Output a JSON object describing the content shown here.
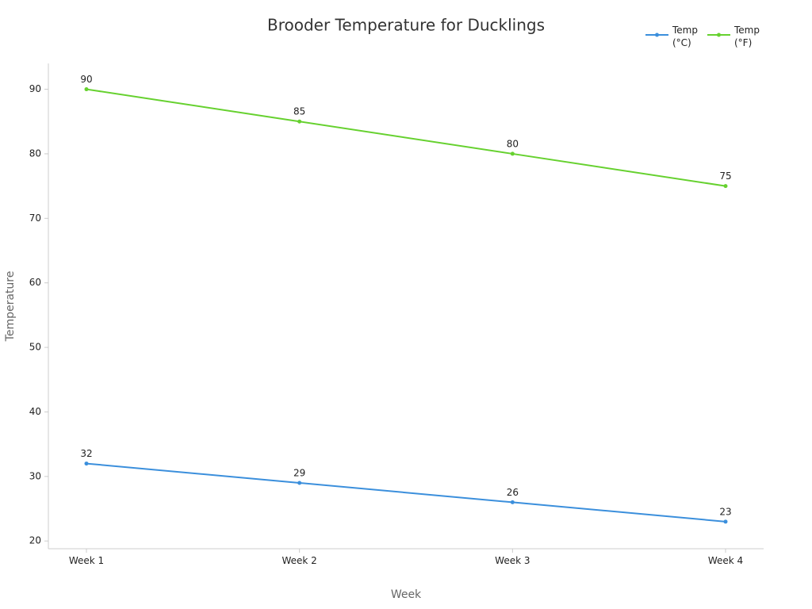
{
  "chart_data": {
    "type": "line",
    "title": "Brooder Temperature for Ducklings",
    "x_label": "Week",
    "y_label": "Temperature",
    "categories": [
      "Week 1",
      "Week 2",
      "Week 3",
      "Week 4"
    ],
    "series": [
      {
        "name": "Temp (°C)",
        "color": "#3b8fdc",
        "values": [
          32,
          29,
          26,
          23
        ]
      },
      {
        "name": "Temp (°F)",
        "color": "#66d12f",
        "values": [
          90,
          85,
          80,
          75
        ]
      }
    ],
    "ylim": [
      18.8,
      94
    ],
    "yticks": [
      20,
      30,
      40,
      50,
      60,
      70,
      80,
      90
    ],
    "grid": false,
    "legend": "top-right"
  }
}
